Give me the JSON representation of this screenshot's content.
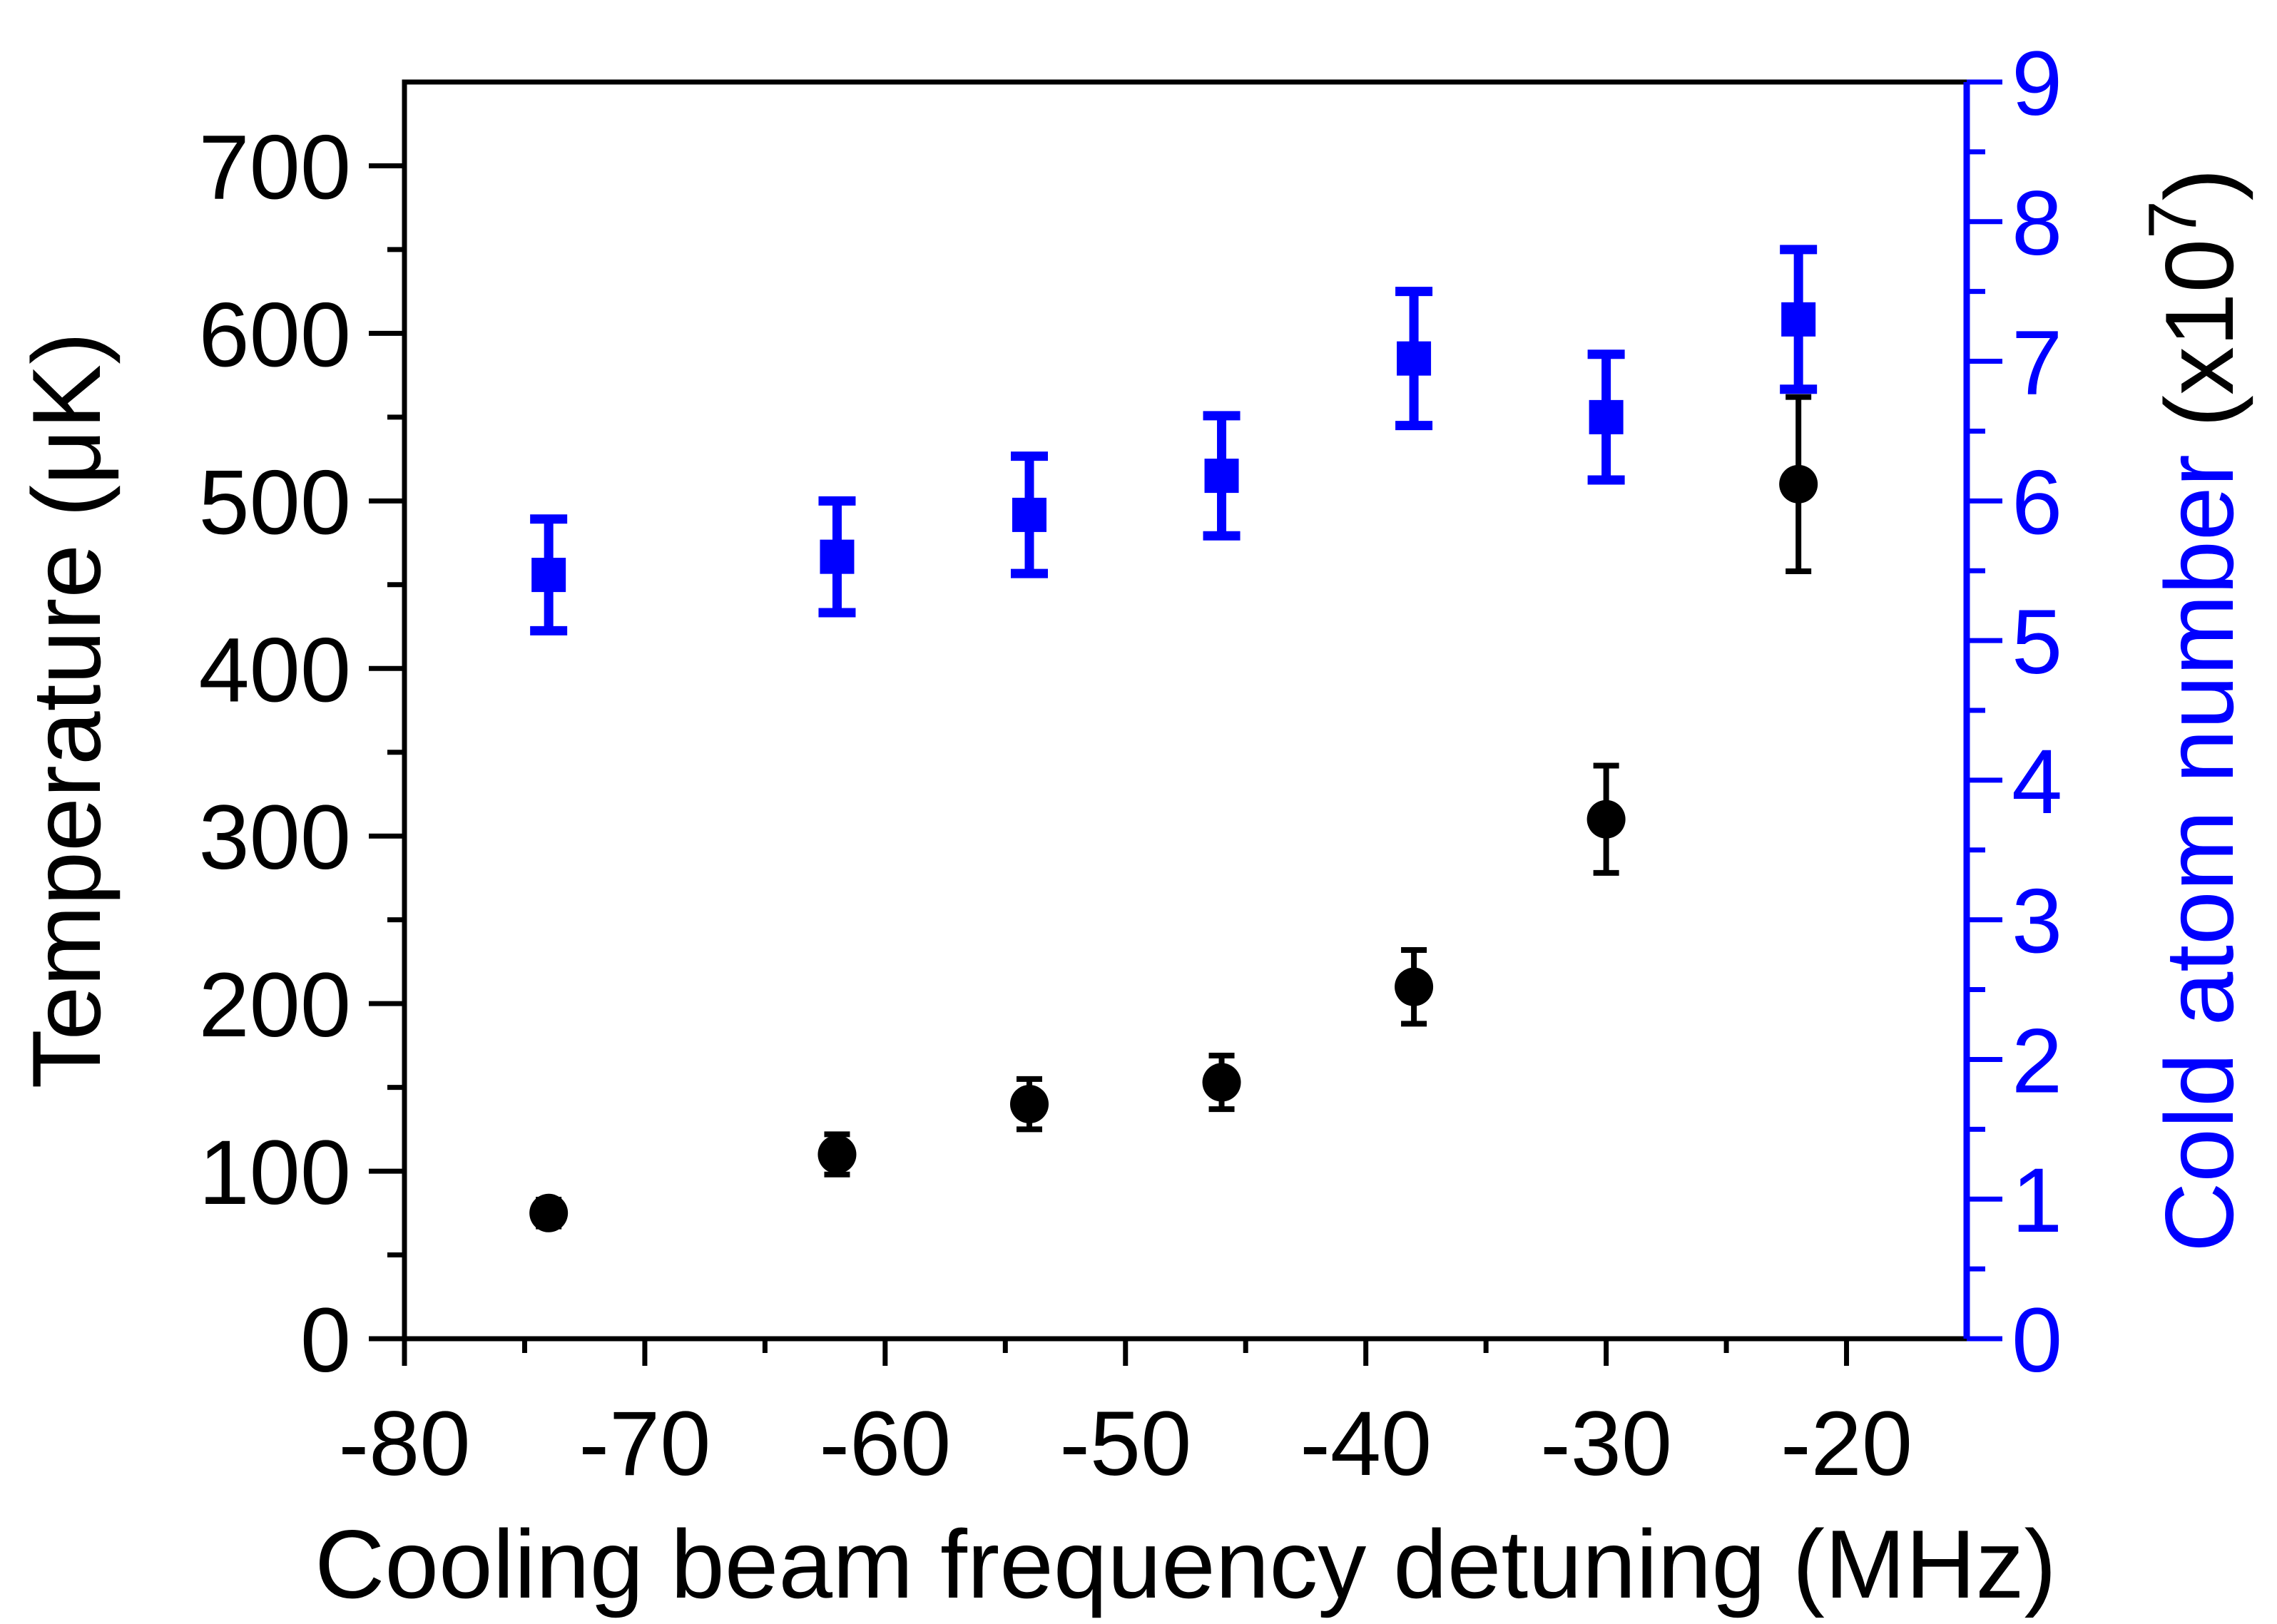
{
  "chart_data": {
    "type": "scatter",
    "title": "",
    "xlabel": "Cooling beam frequency detuning (MHz)",
    "xlim": [
      -80,
      -15
    ],
    "xticks": [
      -80,
      -70,
      -60,
      -50,
      -40,
      -30,
      -20
    ],
    "xtick_labels": [
      "-80",
      "-70",
      "-60",
      "-50",
      "-40",
      "-30",
      "-20"
    ],
    "y_left": {
      "label": "Temperature (μK)",
      "ylim": [
        0,
        750
      ],
      "ticks": [
        0,
        100,
        200,
        300,
        400,
        500,
        600,
        700
      ],
      "tick_labels": [
        "0",
        "100",
        "200",
        "300",
        "400",
        "500",
        "600",
        "700"
      ],
      "color": "#000000"
    },
    "y_right": {
      "label_main": "Cold atom number ",
      "label_paren": "(x10",
      "label_exp": "7",
      "label_close": ")",
      "ylim": [
        0,
        9
      ],
      "ticks": [
        0,
        1,
        2,
        3,
        4,
        5,
        6,
        7,
        8,
        9
      ],
      "tick_labels": [
        "0",
        "1",
        "2",
        "3",
        "4",
        "5",
        "6",
        "7",
        "8",
        "9"
      ],
      "color": "#0000ff"
    },
    "series": [
      {
        "name": "Temperature",
        "axis": "left",
        "marker": "circle",
        "color": "#000000",
        "x": [
          -74,
          -62,
          -54,
          -46,
          -38,
          -30,
          -22
        ],
        "y": [
          75,
          110,
          140,
          153,
          210,
          310,
          510
        ],
        "yerr": [
          8,
          12,
          15,
          16,
          22,
          32,
          52
        ]
      },
      {
        "name": "Cold atom number",
        "axis": "right",
        "marker": "square",
        "color": "#0000ff",
        "x": [
          -74,
          -62,
          -54,
          -46,
          -38,
          -30,
          -22
        ],
        "y": [
          5.47,
          5.6,
          5.9,
          6.18,
          7.02,
          6.6,
          7.3
        ],
        "yerr": [
          0.4,
          0.4,
          0.42,
          0.43,
          0.48,
          0.45,
          0.5
        ]
      }
    ]
  }
}
